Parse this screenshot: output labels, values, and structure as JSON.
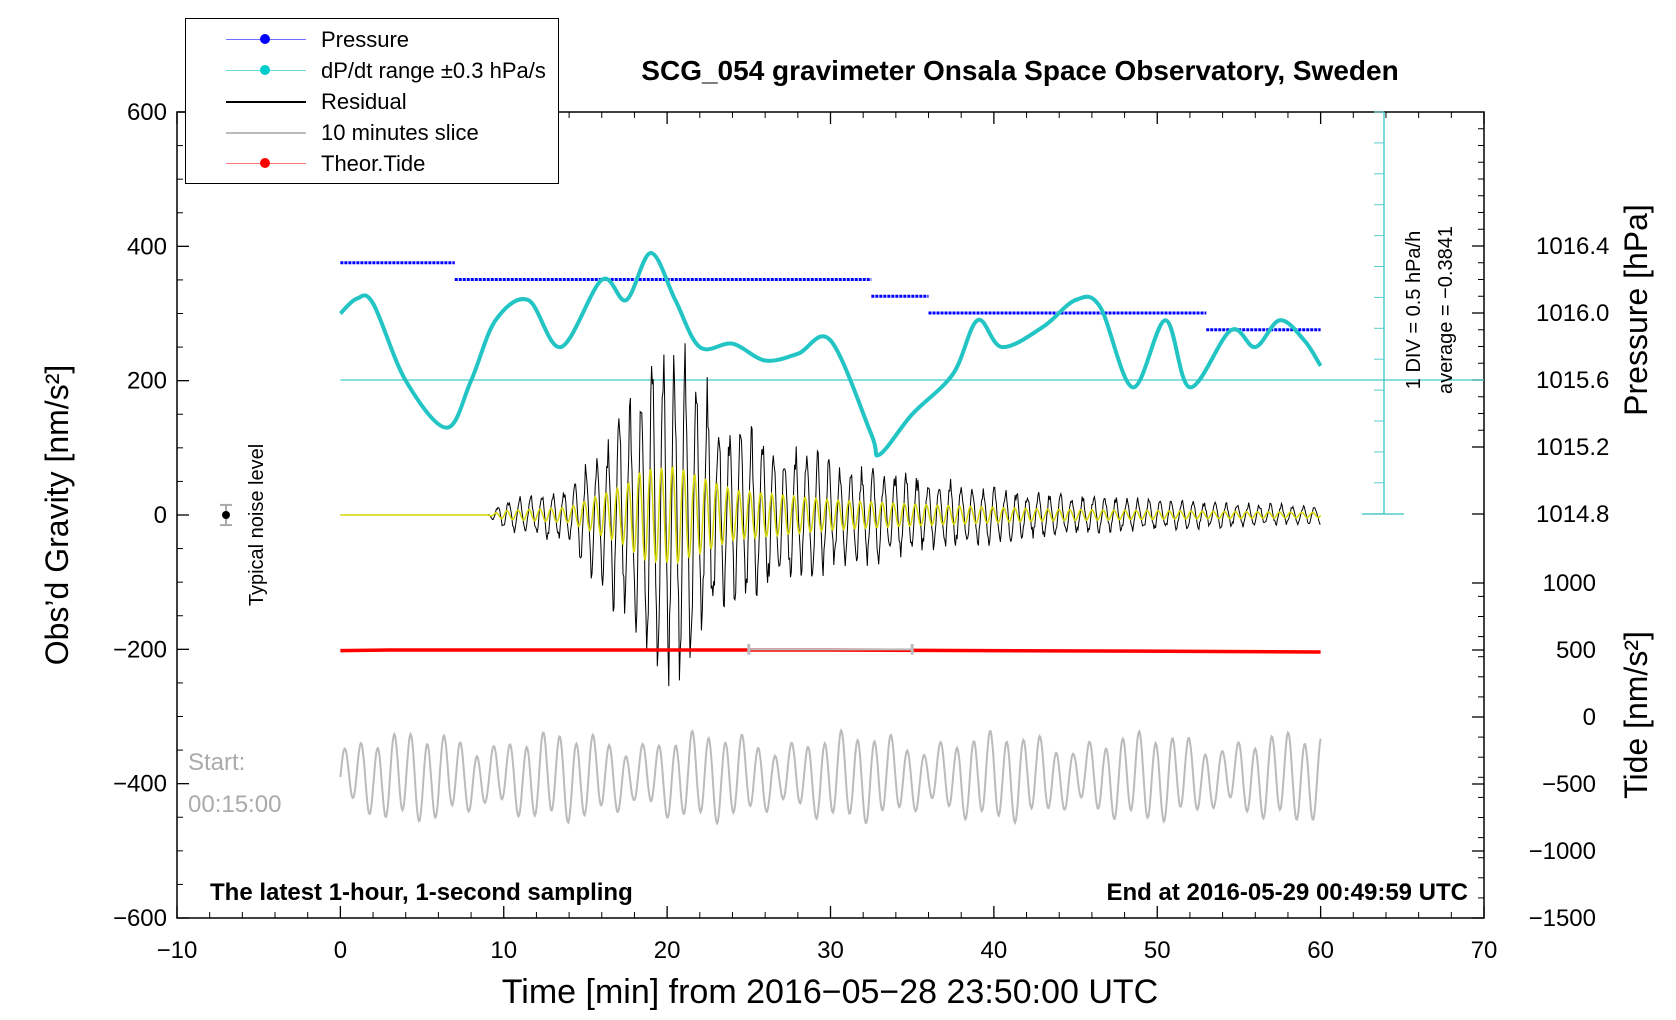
{
  "title": "SCG_054 gravimeter Onsala Space Observatory, Sweden",
  "legend": [
    {
      "label": "Pressure",
      "color": "#0000ff",
      "marker": "dot"
    },
    {
      "label": "dP/dt range ±0.3 hPa/s",
      "color": "#00cccc",
      "marker": "dot"
    },
    {
      "label": "Residual",
      "color": "#000000",
      "marker": "line"
    },
    {
      "label": "10 minutes slice",
      "color": "#bbbbbb",
      "marker": "line"
    },
    {
      "label": "Theor.Tide",
      "color": "#ff0000",
      "marker": "dot"
    }
  ],
  "annotations": {
    "noise": "Typical noise level",
    "start_label": "Start:",
    "start_time": "00:15:00",
    "bottom_left": "The latest 1-hour, 1-second sampling",
    "bottom_right": "End at 2016-05-29 00:49:59 UTC",
    "div_label": "1 DIV = 0.5 hPa/h",
    "average_label": "average = −0.3841"
  },
  "chart_data": {
    "type": "line",
    "title": "SCG_054 gravimeter Onsala Space Observatory, Sweden",
    "xlabel": "Time [min] from 2016−05−28 23:50:00 UTC",
    "ylabel": "Obs’d Gravity [nm/s²]",
    "ylabel_right_top": "Pressure [hPa]",
    "ylabel_right_bottom": "Tide [nm/s²]",
    "xlim": [
      -10,
      70
    ],
    "ylim": [
      -600,
      600
    ],
    "x_ticks": [
      "−10",
      "0",
      "10",
      "20",
      "30",
      "40",
      "50",
      "60",
      "70"
    ],
    "y_ticks": [
      "−600",
      "−400",
      "−200",
      "0",
      "200",
      "400",
      "600"
    ],
    "pressure_ticks": [
      "1014.8",
      "1015.2",
      "1015.6",
      "1016.0",
      "1016.4"
    ],
    "tide_ticks": [
      "−1500",
      "−1000",
      "−500",
      "0",
      "500",
      "1000"
    ],
    "series": [
      {
        "name": "Pressure",
        "unit": "hPa",
        "color": "#0000ff",
        "x": [
          0,
          7,
          7,
          32.5,
          32.5,
          36,
          36,
          53,
          53,
          60
        ],
        "values": [
          1016.3,
          1016.3,
          1016.2,
          1016.2,
          1016.1,
          1016.1,
          1016.0,
          1016.0,
          1015.9,
          1015.9
        ]
      },
      {
        "name": "dP/dt",
        "unit": "hPa/h",
        "color": "#00cccc",
        "x": [
          0,
          1,
          2,
          4,
          6.5,
          8,
          9.5,
          11.5,
          13.5,
          16,
          17.5,
          19,
          20.5,
          22,
          24,
          26,
          28,
          30,
          32.5,
          33,
          35,
          37.5,
          39,
          40.5,
          43,
          45,
          46.5,
          48.5,
          50.5,
          52,
          54.5,
          56,
          57.5,
          59,
          60
        ],
        "values": [
          300,
          322,
          315,
          200,
          130,
          200,
          290,
          320,
          250,
          350,
          320,
          390,
          320,
          250,
          255,
          230,
          240,
          260,
          120,
          90,
          150,
          210,
          290,
          250,
          280,
          320,
          310,
          190,
          290,
          190,
          275,
          250,
          290,
          260,
          222
        ]
      },
      {
        "name": "Residual",
        "unit": "nm/s²",
        "color": "#000000",
        "x": [
          0,
          9,
          10,
          14,
          17.5,
          18.5,
          20.5,
          22,
          24,
          30,
          36,
          43,
          50,
          60
        ],
        "values": [
          0,
          0,
          25,
          45,
          180,
          270,
          290,
          230,
          150,
          90,
          60,
          35,
          25,
          15
        ]
      },
      {
        "name": "10 minutes slice",
        "unit": "nm/s²",
        "color": "#bbbbbb",
        "x": [
          0,
          60
        ],
        "values": [
          -370,
          -370
        ]
      },
      {
        "name": "Theor.Tide",
        "unit": "nm/s²",
        "color": "#ff0000",
        "x": [
          0,
          3,
          30,
          52,
          60
        ],
        "values": [
          -202,
          -201,
          -201,
          -203,
          -204
        ]
      }
    ],
    "dpdt_reference_line": 1015.6
  }
}
